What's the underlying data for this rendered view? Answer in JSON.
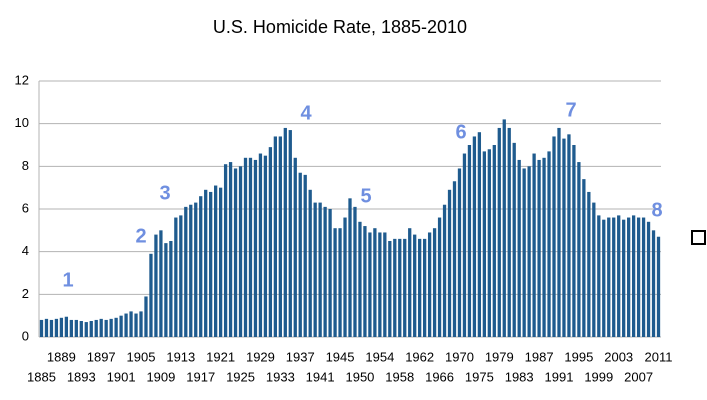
{
  "chart_data": {
    "type": "bar",
    "title": "U.S. Homicide Rate, 1885-2010",
    "categories": [
      "1885",
      null,
      null,
      null,
      "1889",
      null,
      null,
      null,
      "1893",
      null,
      null,
      null,
      "1897",
      null,
      null,
      null,
      "1901",
      null,
      null,
      null,
      "1905",
      null,
      null,
      null,
      "1909",
      null,
      null,
      null,
      "1913",
      null,
      null,
      null,
      "1917",
      null,
      null,
      null,
      "1921",
      null,
      null,
      null,
      "1925",
      null,
      null,
      null,
      "1929",
      null,
      null,
      null,
      "1933",
      null,
      null,
      null,
      "1937",
      null,
      null,
      null,
      "1941",
      null,
      null,
      null,
      "1945",
      null,
      null,
      null,
      "1950",
      null,
      null,
      null,
      "1954",
      null,
      null,
      null,
      "1958",
      null,
      null,
      null,
      "1962",
      null,
      null,
      null,
      "1966",
      null,
      null,
      null,
      "1970",
      null,
      null,
      null,
      "1975",
      null,
      null,
      null,
      "1979",
      null,
      null,
      null,
      "1983",
      null,
      null,
      null,
      "1987",
      null,
      null,
      null,
      "1991",
      null,
      null,
      null,
      "1995",
      null,
      null,
      null,
      "1999",
      null,
      null,
      null,
      "2003",
      null,
      null,
      null,
      "2007",
      null,
      null,
      null,
      "2011"
    ],
    "values": [
      0.8,
      0.85,
      0.8,
      0.85,
      0.9,
      0.95,
      0.8,
      0.8,
      0.75,
      0.7,
      0.75,
      0.8,
      0.85,
      0.8,
      0.85,
      0.9,
      1.0,
      1.1,
      1.2,
      1.1,
      1.2,
      1.9,
      3.9,
      4.8,
      5.0,
      4.4,
      4.5,
      5.6,
      5.7,
      6.1,
      6.2,
      6.3,
      6.6,
      6.9,
      6.8,
      7.1,
      7.0,
      8.1,
      8.2,
      7.9,
      8.0,
      8.4,
      8.4,
      8.3,
      8.6,
      8.5,
      8.9,
      9.4,
      9.4,
      9.8,
      9.7,
      8.4,
      7.7,
      7.6,
      6.9,
      6.3,
      6.3,
      6.1,
      6.0,
      5.1,
      5.1,
      5.6,
      6.5,
      6.1,
      5.4,
      5.2,
      4.9,
      5.1,
      4.9,
      4.9,
      4.5,
      4.6,
      4.6,
      4.6,
      5.1,
      4.8,
      4.6,
      4.6,
      4.9,
      5.1,
      5.6,
      6.2,
      6.9,
      7.3,
      7.9,
      8.6,
      9.0,
      9.4,
      9.6,
      8.7,
      8.8,
      9.0,
      9.8,
      10.2,
      9.8,
      9.1,
      8.3,
      7.9,
      8.0,
      8.6,
      8.3,
      8.4,
      8.7,
      9.4,
      9.8,
      9.3,
      9.5,
      9.0,
      8.2,
      7.4,
      6.8,
      6.3,
      5.7,
      5.5,
      5.6,
      5.6,
      5.7,
      5.5,
      5.6,
      5.7,
      5.6,
      5.6,
      5.4,
      5.0,
      4.7
    ],
    "color": "#1f5b8e",
    "ylim": [
      0,
      12
    ],
    "yticks": [
      0,
      2,
      4,
      6,
      8,
      10,
      12
    ],
    "grid": true,
    "annotations": [
      "1",
      "2",
      "3",
      "4",
      "5",
      "6",
      "7",
      "8"
    ]
  }
}
